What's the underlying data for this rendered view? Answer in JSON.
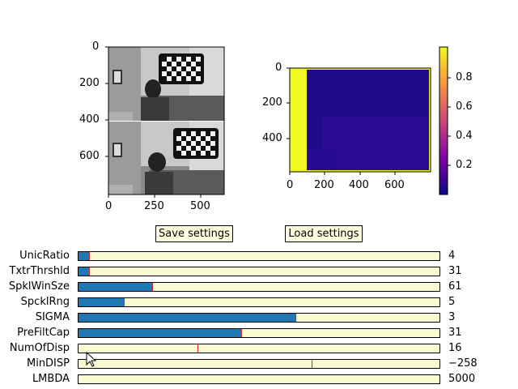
{
  "stereo_image": {
    "y_ticks": [
      "0",
      "200",
      "400",
      "600"
    ],
    "x_ticks": [
      "0",
      "250",
      "500"
    ]
  },
  "disparity_map": {
    "y_ticks": [
      "0",
      "200",
      "400"
    ],
    "x_ticks": [
      "0",
      "200",
      "400",
      "600"
    ],
    "colormap": "plasma",
    "colorbar_ticks": [
      "0.8",
      "0.6",
      "0.4",
      "0.2"
    ]
  },
  "buttons": {
    "save_label": "Save settings",
    "load_label": "Load settings"
  },
  "sliders": [
    {
      "label": "UnicRatio",
      "value": "4",
      "fill_fraction": 0.03,
      "marker_fraction": 0.03
    },
    {
      "label": "TxtrThrshld",
      "value": "31",
      "fill_fraction": 0.03,
      "marker_fraction": 0.03
    },
    {
      "label": "SpklWinSze",
      "value": "61",
      "fill_fraction": 0.205,
      "marker_fraction": 0.205
    },
    {
      "label": "SpcklRng",
      "value": "5",
      "fill_fraction": 0.125,
      "marker_fraction": 0.125
    },
    {
      "label": "SIGMA",
      "value": "3",
      "fill_fraction": 0.6,
      "marker_fraction": 0.6
    },
    {
      "label": "PreFiltCap",
      "value": "31",
      "fill_fraction": 0.45,
      "marker_fraction": 0.45
    },
    {
      "label": "NumOfDisp",
      "value": "16",
      "fill_fraction": 0,
      "marker_fraction": 0.33
    },
    {
      "label": "MinDISP",
      "value": "−258",
      "fill_fraction": 0,
      "marker_fraction": 0.645
    },
    {
      "label": "LMBDA",
      "value": "5000",
      "fill_fraction": 0,
      "marker_fraction": null
    }
  ]
}
